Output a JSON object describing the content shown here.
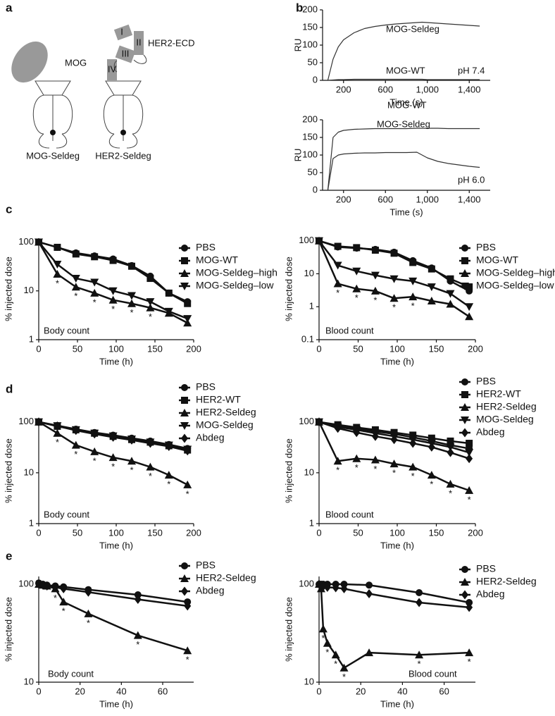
{
  "panel_labels": [
    "a",
    "b",
    "c",
    "d",
    "e"
  ],
  "diagram": {
    "mog": "MOG",
    "mog_seldeg": "MOG-Seldeg",
    "her2_ecd": "HER2-ECD",
    "domains": [
      "I",
      "II",
      "III",
      "IV"
    ],
    "her2_seldeg": "HER2-Seldeg"
  },
  "chart_data": [
    {
      "type": "line",
      "color": "#333333",
      "xlabel": "Time (s)",
      "ylabel": "RU",
      "annotation": "pH 7.4",
      "legend": "inline",
      "xlim": [
        0,
        1600
      ],
      "xticks": [
        200,
        600,
        {
          "value": 1000,
          "label": "1,000"
        },
        {
          "value": 1400,
          "label": "1,400"
        }
      ],
      "ylim": [
        0,
        200
      ],
      "yticks": [
        0,
        50,
        100,
        150,
        200
      ],
      "x": [
        50,
        100,
        150,
        200,
        300,
        400,
        500,
        600,
        700,
        800,
        900,
        950,
        1000,
        1100,
        1200,
        1300,
        1400,
        1500
      ],
      "series": [
        {
          "name": "MOG-Seldeg",
          "values": [
            0,
            60,
            95,
            115,
            135,
            147,
            153,
            157,
            160,
            162,
            164,
            165,
            164,
            162,
            160,
            158,
            156,
            154
          ]
        },
        {
          "name": "MOG-WT",
          "values": [
            0,
            1,
            2,
            2,
            3,
            3,
            3,
            3,
            3,
            3,
            3,
            3,
            2,
            2,
            2,
            2,
            2,
            2
          ]
        }
      ]
    },
    {
      "type": "line",
      "color": "#333333",
      "xlabel": "Time (s)",
      "ylabel": "RU",
      "annotation": "pH 6.0",
      "legend": "inline",
      "xlim": [
        0,
        1600
      ],
      "xticks": [
        200,
        600,
        {
          "value": 1000,
          "label": "1,000"
        },
        {
          "value": 1400,
          "label": "1,400"
        }
      ],
      "ylim": [
        0,
        200
      ],
      "yticks": [
        0,
        50,
        100,
        150,
        200
      ],
      "x": [
        50,
        100,
        150,
        200,
        300,
        400,
        500,
        600,
        700,
        800,
        900,
        950,
        1000,
        1100,
        1200,
        1300,
        1400,
        1500
      ],
      "series": [
        {
          "name": "MOG-Seldeg",
          "values": [
            0,
            150,
            165,
            170,
            173,
            174,
            175,
            175,
            175,
            175,
            176,
            176,
            176,
            176,
            175,
            175,
            175,
            175
          ]
        },
        {
          "name": "MOG-WT",
          "values": [
            0,
            90,
            100,
            103,
            105,
            106,
            106,
            107,
            107,
            107,
            108,
            100,
            92,
            82,
            76,
            72,
            68,
            65
          ]
        }
      ]
    },
    {
      "type": "line",
      "color": "#111111",
      "log_y": true,
      "xlabel": "Time (h)",
      "ylabel": "% injected dose",
      "annotation": "Body count",
      "legend": "right",
      "xlim": [
        0,
        200
      ],
      "xticks": [
        0,
        50,
        100,
        150,
        200
      ],
      "ylim": [
        1,
        120
      ],
      "yticks": [
        1,
        10,
        100
      ],
      "x": [
        0,
        24,
        48,
        72,
        96,
        120,
        144,
        168,
        192
      ],
      "star": "*",
      "star_x": [
        24,
        48,
        72,
        96,
        120,
        144
      ],
      "series": [
        {
          "name": "PBS",
          "marker": "circle",
          "values": [
            100,
            78,
            60,
            52,
            45,
            33,
            20,
            9,
            6
          ]
        },
        {
          "name": "MOG-WT",
          "marker": "square",
          "values": [
            100,
            78,
            57,
            50,
            42,
            32,
            18,
            9,
            5.5
          ]
        },
        {
          "name": "MOG-Seldeg–high",
          "marker": "triangle-up",
          "values": [
            100,
            22,
            12,
            9,
            6.5,
            5.5,
            4.5,
            3.5,
            2.2
          ]
        },
        {
          "name": "MOG-Seldeg–low",
          "marker": "triangle-down",
          "values": [
            100,
            35,
            18,
            15,
            10,
            8,
            6,
            3.8,
            2.7
          ]
        }
      ]
    },
    {
      "type": "line",
      "color": "#111111",
      "log_y": true,
      "xlabel": "Time (h)",
      "ylabel": "% injected dose",
      "annotation": "Blood count",
      "legend": "right",
      "xlim": [
        0,
        200
      ],
      "xticks": [
        0,
        50,
        100,
        150,
        200
      ],
      "ylim": [
        0.1,
        120
      ],
      "yticks": [
        0.1,
        1,
        10,
        100
      ],
      "x": [
        0,
        24,
        48,
        72,
        96,
        120,
        144,
        168,
        192
      ],
      "star": "*",
      "star_x": [
        24,
        48,
        72,
        96,
        120
      ],
      "series": [
        {
          "name": "PBS",
          "marker": "circle",
          "values": [
            100,
            65,
            60,
            55,
            45,
            25,
            15,
            6,
            3
          ]
        },
        {
          "name": "MOG-WT",
          "marker": "square",
          "values": [
            100,
            68,
            62,
            52,
            42,
            22,
            14,
            7,
            4
          ]
        },
        {
          "name": "MOG-Seldeg–high",
          "marker": "triangle-up",
          "values": [
            100,
            5,
            3.5,
            3,
            1.8,
            2,
            1.5,
            1.2,
            0.5
          ]
        },
        {
          "name": "MOG-Seldeg–low",
          "marker": "triangle-down",
          "values": [
            100,
            18,
            12,
            9,
            7,
            6,
            4,
            2.5,
            1
          ]
        }
      ]
    },
    {
      "type": "line",
      "color": "#111111",
      "log_y": true,
      "xlabel": "Time (h)",
      "ylabel": "% injected dose",
      "annotation": "Body count",
      "legend": "right",
      "xlim": [
        0,
        200
      ],
      "xticks": [
        0,
        50,
        100,
        150,
        200
      ],
      "ylim": [
        1,
        120
      ],
      "yticks": [
        1,
        10,
        100
      ],
      "x": [
        0,
        24,
        48,
        72,
        96,
        120,
        144,
        168,
        192
      ],
      "star": "*",
      "star_x": [
        24,
        48,
        72,
        96,
        120,
        144,
        168,
        192
      ],
      "series": [
        {
          "name": "PBS",
          "marker": "circle",
          "values": [
            100,
            85,
            72,
            62,
            55,
            48,
            42,
            36,
            30
          ]
        },
        {
          "name": "HER2-WT",
          "marker": "square",
          "values": [
            100,
            82,
            70,
            60,
            52,
            45,
            40,
            34,
            28
          ]
        },
        {
          "name": "HER2-Seldeg",
          "marker": "triangle-up",
          "values": [
            100,
            60,
            35,
            26,
            20,
            17,
            13,
            9,
            5.8
          ]
        },
        {
          "name": "MOG-Seldeg",
          "marker": "triangle-down",
          "values": [
            100,
            84,
            70,
            60,
            53,
            46,
            40,
            35,
            29
          ]
        },
        {
          "name": "Abdeg",
          "marker": "diamond",
          "values": [
            100,
            83,
            68,
            58,
            50,
            44,
            38,
            33,
            27
          ]
        }
      ]
    },
    {
      "type": "line",
      "color": "#111111",
      "log_y": true,
      "xlabel": "Time (h)",
      "ylabel": "% injected dose",
      "annotation": "Blood count",
      "legend": "right",
      "xlim": [
        0,
        200
      ],
      "xticks": [
        0,
        50,
        100,
        150,
        200
      ],
      "ylim": [
        1,
        120
      ],
      "yticks": [
        1,
        10,
        100
      ],
      "x": [
        0,
        24,
        48,
        72,
        96,
        120,
        144,
        168,
        192
      ],
      "star": "*",
      "star_x": [
        24,
        48,
        72,
        96,
        120,
        144,
        168,
        192
      ],
      "series": [
        {
          "name": "PBS",
          "marker": "circle",
          "values": [
            100,
            85,
            75,
            65,
            58,
            50,
            42,
            35,
            30
          ]
        },
        {
          "name": "HER2-WT",
          "marker": "square",
          "values": [
            100,
            88,
            78,
            70,
            62,
            55,
            48,
            42,
            38
          ]
        },
        {
          "name": "HER2-Seldeg",
          "marker": "triangle-up",
          "values": [
            100,
            17,
            19,
            18,
            15,
            13,
            9,
            6,
            4.5
          ]
        },
        {
          "name": "MOG-Seldeg",
          "marker": "triangle-down",
          "values": [
            100,
            80,
            70,
            60,
            52,
            45,
            38,
            32,
            25
          ]
        },
        {
          "name": "Abdeg",
          "marker": "diamond",
          "values": [
            100,
            75,
            62,
            52,
            45,
            38,
            32,
            25,
            19
          ]
        }
      ]
    },
    {
      "type": "line",
      "color": "#111111",
      "log_y": true,
      "xlabel": "Time (h)",
      "ylabel": "% injected dose",
      "annotation": "Body count",
      "legend": "right",
      "xlim": [
        0,
        75
      ],
      "xticks": [
        0,
        20,
        40,
        60
      ],
      "ylim": [
        10,
        120
      ],
      "yticks": [
        10,
        100
      ],
      "x": [
        0,
        2,
        4,
        8,
        12,
        24,
        48,
        72
      ],
      "star": "*",
      "star_x": [
        8,
        12,
        24,
        48,
        72
      ],
      "series": [
        {
          "name": "PBS",
          "marker": "circle",
          "values": [
            103,
            100,
            98,
            96,
            94,
            88,
            78,
            66
          ]
        },
        {
          "name": "HER2-Seldeg",
          "marker": "triangle-up",
          "values": [
            100,
            98,
            96,
            90,
            66,
            50,
            30,
            21
          ]
        },
        {
          "name": "Abdeg",
          "marker": "diamond",
          "values": [
            100,
            98,
            96,
            93,
            90,
            83,
            70,
            60
          ]
        }
      ]
    },
    {
      "type": "line",
      "color": "#111111",
      "log_y": true,
      "xlabel": "Time (h)",
      "ylabel": "% injected dose",
      "annotation": "Blood count",
      "legend": "right",
      "xlim": [
        0,
        75
      ],
      "xticks": [
        0,
        20,
        40,
        60
      ],
      "ylim": [
        10,
        120
      ],
      "yticks": [
        10,
        100
      ],
      "x": [
        0,
        1,
        2,
        4,
        8,
        12,
        24,
        48,
        72
      ],
      "star": "*",
      "star_x": [
        2,
        4,
        8,
        12,
        48,
        72
      ],
      "series": [
        {
          "name": "PBS",
          "marker": "circle",
          "values": [
            100,
            100,
            100,
            100,
            100,
            100,
            98,
            82,
            65
          ]
        },
        {
          "name": "HER2-Seldeg",
          "marker": "triangle-up",
          "values": [
            100,
            90,
            35,
            25,
            19,
            14,
            20,
            19,
            20
          ]
        },
        {
          "name": "Abdeg",
          "marker": "diamond",
          "values": [
            100,
            97,
            95,
            93,
            92,
            90,
            80,
            65,
            58
          ]
        }
      ]
    }
  ]
}
